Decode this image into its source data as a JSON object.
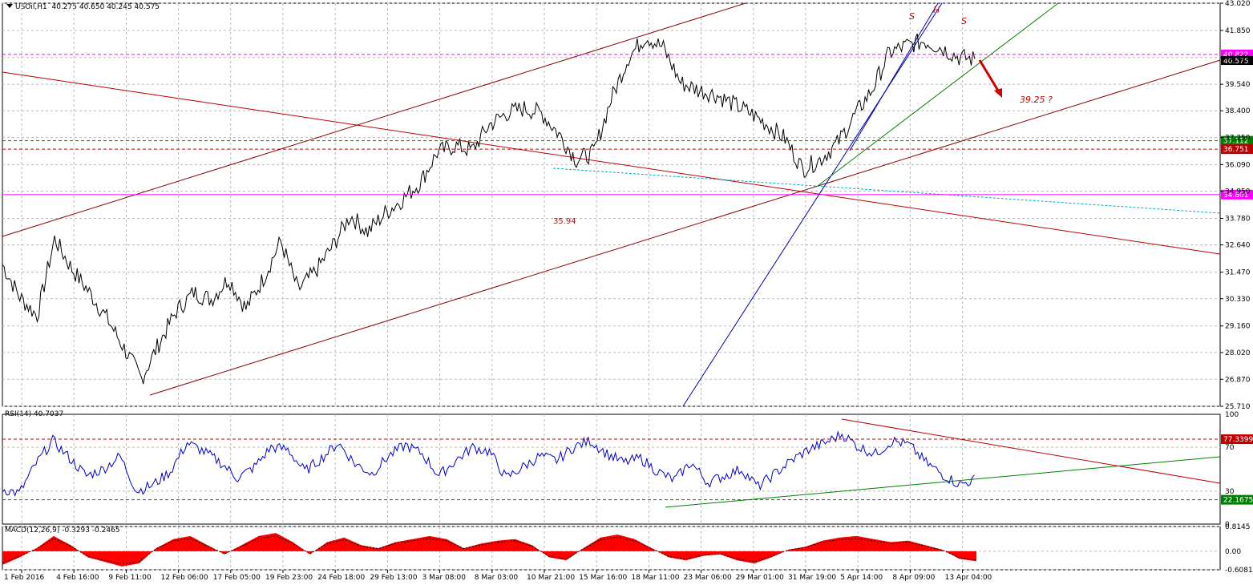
{
  "chart_title": {
    "symbol": "USOil,H1",
    "ohlc": "40.275 40.650 40.245 40.575"
  },
  "chart_data": [
    {
      "type": "line",
      "pane": "price",
      "ylim": [
        25.71,
        43.02
      ],
      "y_ticks": [
        "43.020",
        "41.850",
        "40.685",
        "39.540",
        "38.400",
        "37.250",
        "36.090",
        "34.950",
        "33.780",
        "32.640",
        "31.470",
        "30.330",
        "29.160",
        "28.020",
        "26.870",
        "25.710"
      ],
      "current_price": "40.575",
      "horizontal_levels": [
        {
          "value": "40.822",
          "color": "#ff00ff",
          "style": "dashed"
        },
        {
          "value": "37.112",
          "color": "#008000",
          "style": "dashed"
        },
        {
          "value": "36.751",
          "color": "#c00000",
          "style": "dashed"
        },
        {
          "value": "34.801",
          "color": "#ff00ff",
          "style": "solid"
        }
      ],
      "x_labels": [
        "1 Feb 2016",
        "4 Feb 16:00",
        "9 Feb 11:00",
        "12 Feb 06:00",
        "17 Feb 05:00",
        "19 Feb 23:00",
        "24 Feb 18:00",
        "29 Feb 13:00",
        "3 Mar 08:00",
        "8 Mar 03:00",
        "10 Mar 21:00",
        "15 Mar 16:00",
        "18 Mar 11:00",
        "23 Mar 06:00",
        "29 Mar 01:00",
        "31 Mar 19:00",
        "5 Apr 14:00",
        "8 Apr 09:00",
        "13 Apr 04:00"
      ],
      "annotations": [
        "S",
        "H",
        "S",
        "39.25 ?",
        "35.94"
      ],
      "series": [
        {
          "x": [
            "1 Feb 2016",
            "2 Feb",
            "3 Feb",
            "4 Feb 16:00",
            "5 Feb",
            "8 Feb",
            "9 Feb 11:00",
            "10 Feb",
            "11 Feb",
            "12 Feb 06:00",
            "15 Feb",
            "16 Feb",
            "17 Feb 05:00",
            "18 Feb",
            "19 Feb",
            "19 Feb 23:00",
            "22 Feb",
            "23 Feb",
            "24 Feb 18:00",
            "25 Feb",
            "26 Feb",
            "29 Feb 13:00",
            "1 Mar",
            "2 Mar",
            "3 Mar 08:00",
            "4 Mar",
            "7 Mar",
            "8 Mar 03:00",
            "9 Mar",
            "10 Mar",
            "10 Mar 21:00",
            "11 Mar",
            "14 Mar",
            "15 Mar 16:00",
            "16 Mar",
            "17 Mar",
            "18 Mar 11:00",
            "21 Mar",
            "22 Mar",
            "23 Mar 06:00",
            "24 Mar",
            "28 Mar",
            "29 Mar 01:00",
            "30 Mar",
            "31 Mar",
            "31 Mar 19:00",
            "1 Apr",
            "4 Apr",
            "5 Apr 14:00",
            "6 Apr",
            "7 Apr",
            "8 Apr 09:00",
            "11 Apr",
            "12 Apr",
            "13 Apr 04:00",
            "14 Apr",
            "15 Apr"
          ],
          "values": [
            31.8,
            30.4,
            29.6,
            32.9,
            31.6,
            30.6,
            29.5,
            28.2,
            26.9,
            28.4,
            29.8,
            30.6,
            30.3,
            31.2,
            29.9,
            31.2,
            32.8,
            30.7,
            31.5,
            32.6,
            33.9,
            33.2,
            34.0,
            34.6,
            35.3,
            36.6,
            36.9,
            36.7,
            37.8,
            38.3,
            38.5,
            38.3,
            37.4,
            36.3,
            36.6,
            38.9,
            40.7,
            41.6,
            41.1,
            39.6,
            39.3,
            39.1,
            38.7,
            38.3,
            37.8,
            37.2,
            35.9,
            36.3,
            37.0,
            38.2,
            39.3,
            40.9,
            41.2,
            41.4,
            41.1,
            40.7,
            40.6
          ]
        }
      ]
    },
    {
      "type": "line",
      "pane": "RSI",
      "label": "RSI(14) 40.7037",
      "ylim": [
        0,
        100
      ],
      "y_ticks": [
        "100",
        "70",
        "30",
        "0"
      ],
      "levels": [
        {
          "value": "77.3399",
          "color": "#c00000"
        },
        {
          "value": "22.1675",
          "color": "#008000"
        }
      ],
      "series": [
        {
          "values": [
            32,
            28,
            55,
            76,
            60,
            44,
            50,
            62,
            30,
            36,
            48,
            74,
            66,
            56,
            42,
            52,
            70,
            68,
            48,
            60,
            74,
            55,
            46,
            62,
            72,
            64,
            44,
            58,
            70,
            66,
            42,
            52,
            62,
            58,
            70,
            76,
            64,
            56,
            60,
            48,
            40,
            56,
            38,
            44,
            50,
            34,
            46,
            58,
            68,
            74,
            82,
            70,
            64,
            76,
            72,
            56,
            45,
            36,
            41
          ]
        }
      ]
    },
    {
      "type": "area",
      "pane": "MACD",
      "label": "MACD(12,26,9) -0.3293 -0.2465",
      "ylim": [
        -0.6081,
        0.8145
      ],
      "y_ticks": [
        "0.8145",
        "0.00",
        "-0.6081"
      ],
      "series": [
        {
          "values": [
            -0.45,
            -0.2,
            0.1,
            0.5,
            0.2,
            -0.2,
            -0.35,
            -0.5,
            -0.4,
            0.1,
            0.4,
            0.5,
            0.2,
            -0.1,
            0.2,
            0.5,
            0.6,
            0.3,
            -0.1,
            0.3,
            0.45,
            0.2,
            0.1,
            0.3,
            0.4,
            0.5,
            0.4,
            0.1,
            0.25,
            0.35,
            0.4,
            0.2,
            -0.2,
            -0.3,
            0.1,
            0.45,
            0.55,
            0.4,
            0.1,
            -0.2,
            -0.3,
            -0.15,
            -0.1,
            -0.3,
            -0.4,
            -0.2,
            0.05,
            0.15,
            0.35,
            0.45,
            0.5,
            0.4,
            0.3,
            0.35,
            0.2,
            0.05,
            -0.25,
            -0.33
          ]
        }
      ]
    }
  ]
}
